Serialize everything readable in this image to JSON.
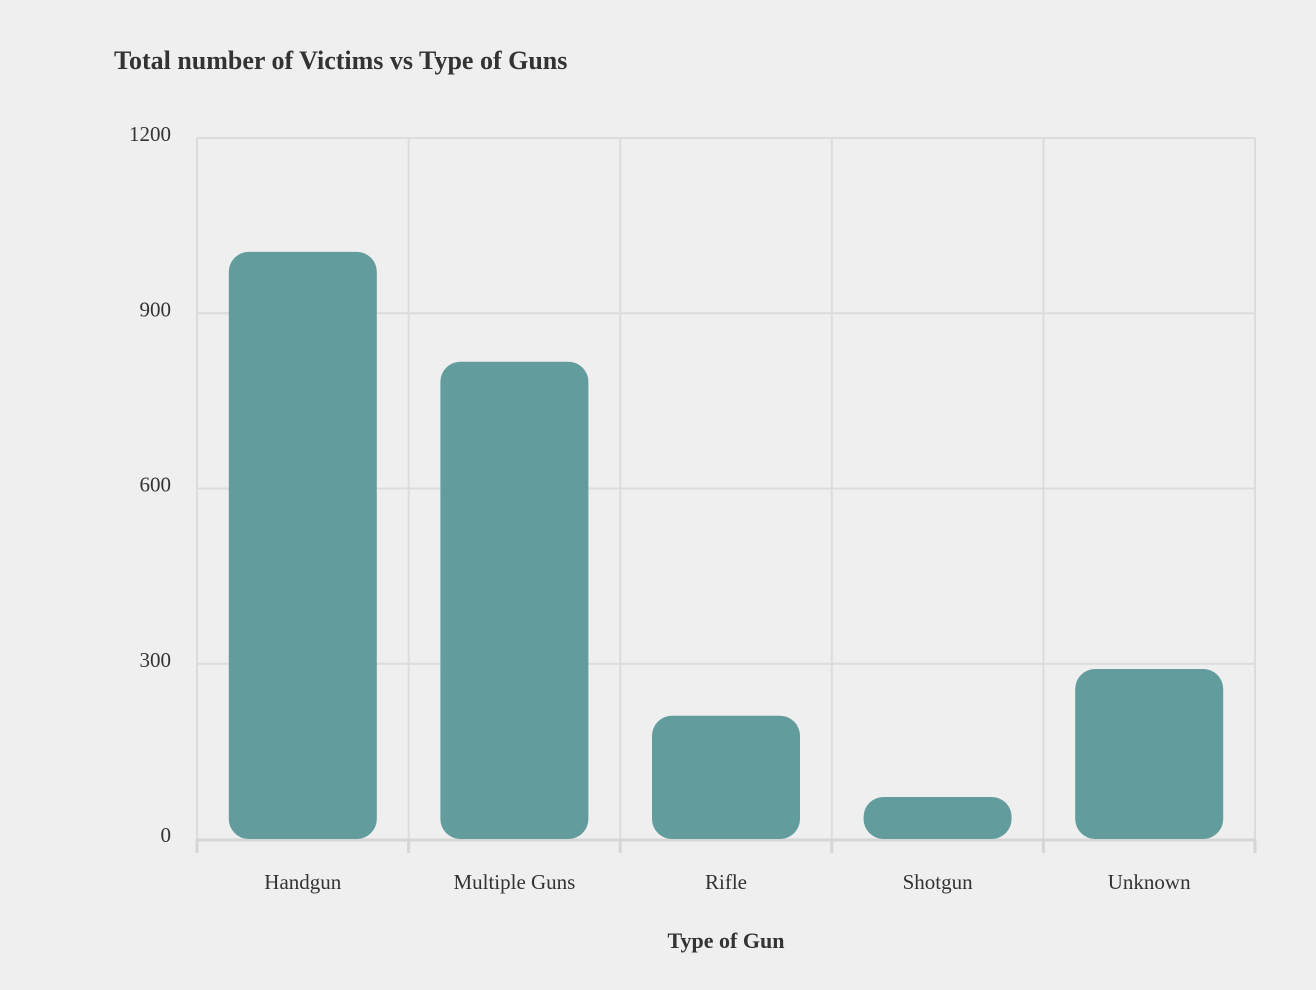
{
  "chart_data": {
    "type": "bar",
    "title": "Total number of Victims vs Type of Guns",
    "xlabel": "Type of Gun",
    "ylabel": "",
    "categories": [
      "Handgun",
      "Multiple Guns",
      "Rifle",
      "Shotgun",
      "Unknown"
    ],
    "values": [
      1005,
      817,
      211,
      72,
      291
    ],
    "ylim": [
      0,
      1200
    ],
    "yticks": [
      0,
      300,
      600,
      900,
      1200
    ],
    "grid": true,
    "bar_color": "#629c9d"
  }
}
